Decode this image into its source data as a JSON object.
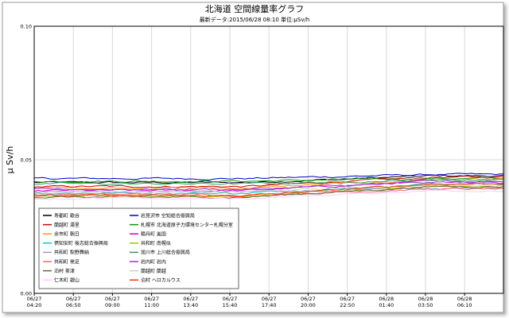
{
  "chart_data": {
    "type": "line",
    "title": "北海道 空間線量率グラフ",
    "subtitle": "最新データ:2015/06/28 08:10 単位:μSv/h",
    "ylabel": "μ Sv/h",
    "xlabel": "",
    "ylim": [
      0.0,
      0.1
    ],
    "y_ticks": [
      {
        "value": 0.0,
        "label": "0.00"
      },
      {
        "value": 0.05,
        "label": "0.05"
      },
      {
        "value": 0.1,
        "label": "0.10"
      }
    ],
    "x_ticks": [
      {
        "date": "06/27",
        "time": "04:20"
      },
      {
        "date": "06/27",
        "time": "06:50"
      },
      {
        "date": "06/27",
        "time": "09:00"
      },
      {
        "date": "06/27",
        "time": "11:00"
      },
      {
        "date": "06/27",
        "time": "13:40"
      },
      {
        "date": "06/27",
        "time": "15:40"
      },
      {
        "date": "06/27",
        "time": "17:40"
      },
      {
        "date": "06/27",
        "time": "20:00"
      },
      {
        "date": "06/27",
        "time": "22:50"
      },
      {
        "date": "06/28",
        "time": "01:40"
      },
      {
        "date": "06/28",
        "time": "03:50"
      },
      {
        "date": "06/28",
        "time": "06:10"
      }
    ],
    "grid": true,
    "legend_position": "bottom-left",
    "series": [
      {
        "name": "寿都町 歌谷",
        "color": "#000000",
        "start": 0.0415,
        "end": 0.044
      },
      {
        "name": "岩見沢市 空知総合振興局",
        "color": "#0000cc",
        "start": 0.043,
        "end": 0.0445
      },
      {
        "name": "蘭越町 湯里",
        "color": "#cc0000",
        "start": 0.04,
        "end": 0.0435
      },
      {
        "name": "札幌市 北海道原子力環境センター札幌分室",
        "color": "#009900",
        "start": 0.042,
        "end": 0.043
      },
      {
        "name": "余市町 朝日",
        "color": "#ff9900",
        "start": 0.0395,
        "end": 0.0425
      },
      {
        "name": "積丹町 美国",
        "color": "#cc00cc",
        "start": 0.0385,
        "end": 0.042
      },
      {
        "name": "倶知安町 後志総合振興局",
        "color": "#00cccc",
        "start": 0.0375,
        "end": 0.041
      },
      {
        "name": "共和町 南幌似",
        "color": "#99cc00",
        "start": 0.0365,
        "end": 0.04
      },
      {
        "name": "共和町 梨野舞納",
        "color": "#9999cc",
        "start": 0.038,
        "end": 0.0395
      },
      {
        "name": "旭川市 上川総合振興局",
        "color": "#339966",
        "start": 0.041,
        "end": 0.0425
      },
      {
        "name": "共和町 発足",
        "color": "#ff6666",
        "start": 0.037,
        "end": 0.039
      },
      {
        "name": "岩内町 岩内",
        "color": "#9933cc",
        "start": 0.039,
        "end": 0.0415
      },
      {
        "name": "泊村 茶津",
        "color": "#666633",
        "start": 0.036,
        "end": 0.04
      },
      {
        "name": "蘭越町 蘭越",
        "color": "#cccccc",
        "start": 0.038,
        "end": 0.0405
      },
      {
        "name": "仁木町 銀山",
        "color": "#ffccff",
        "start": 0.0355,
        "end": 0.0385
      },
      {
        "name": "泊村 ヘロカルウス",
        "color": "#ff3300",
        "start": 0.0365,
        "end": 0.041
      }
    ]
  }
}
